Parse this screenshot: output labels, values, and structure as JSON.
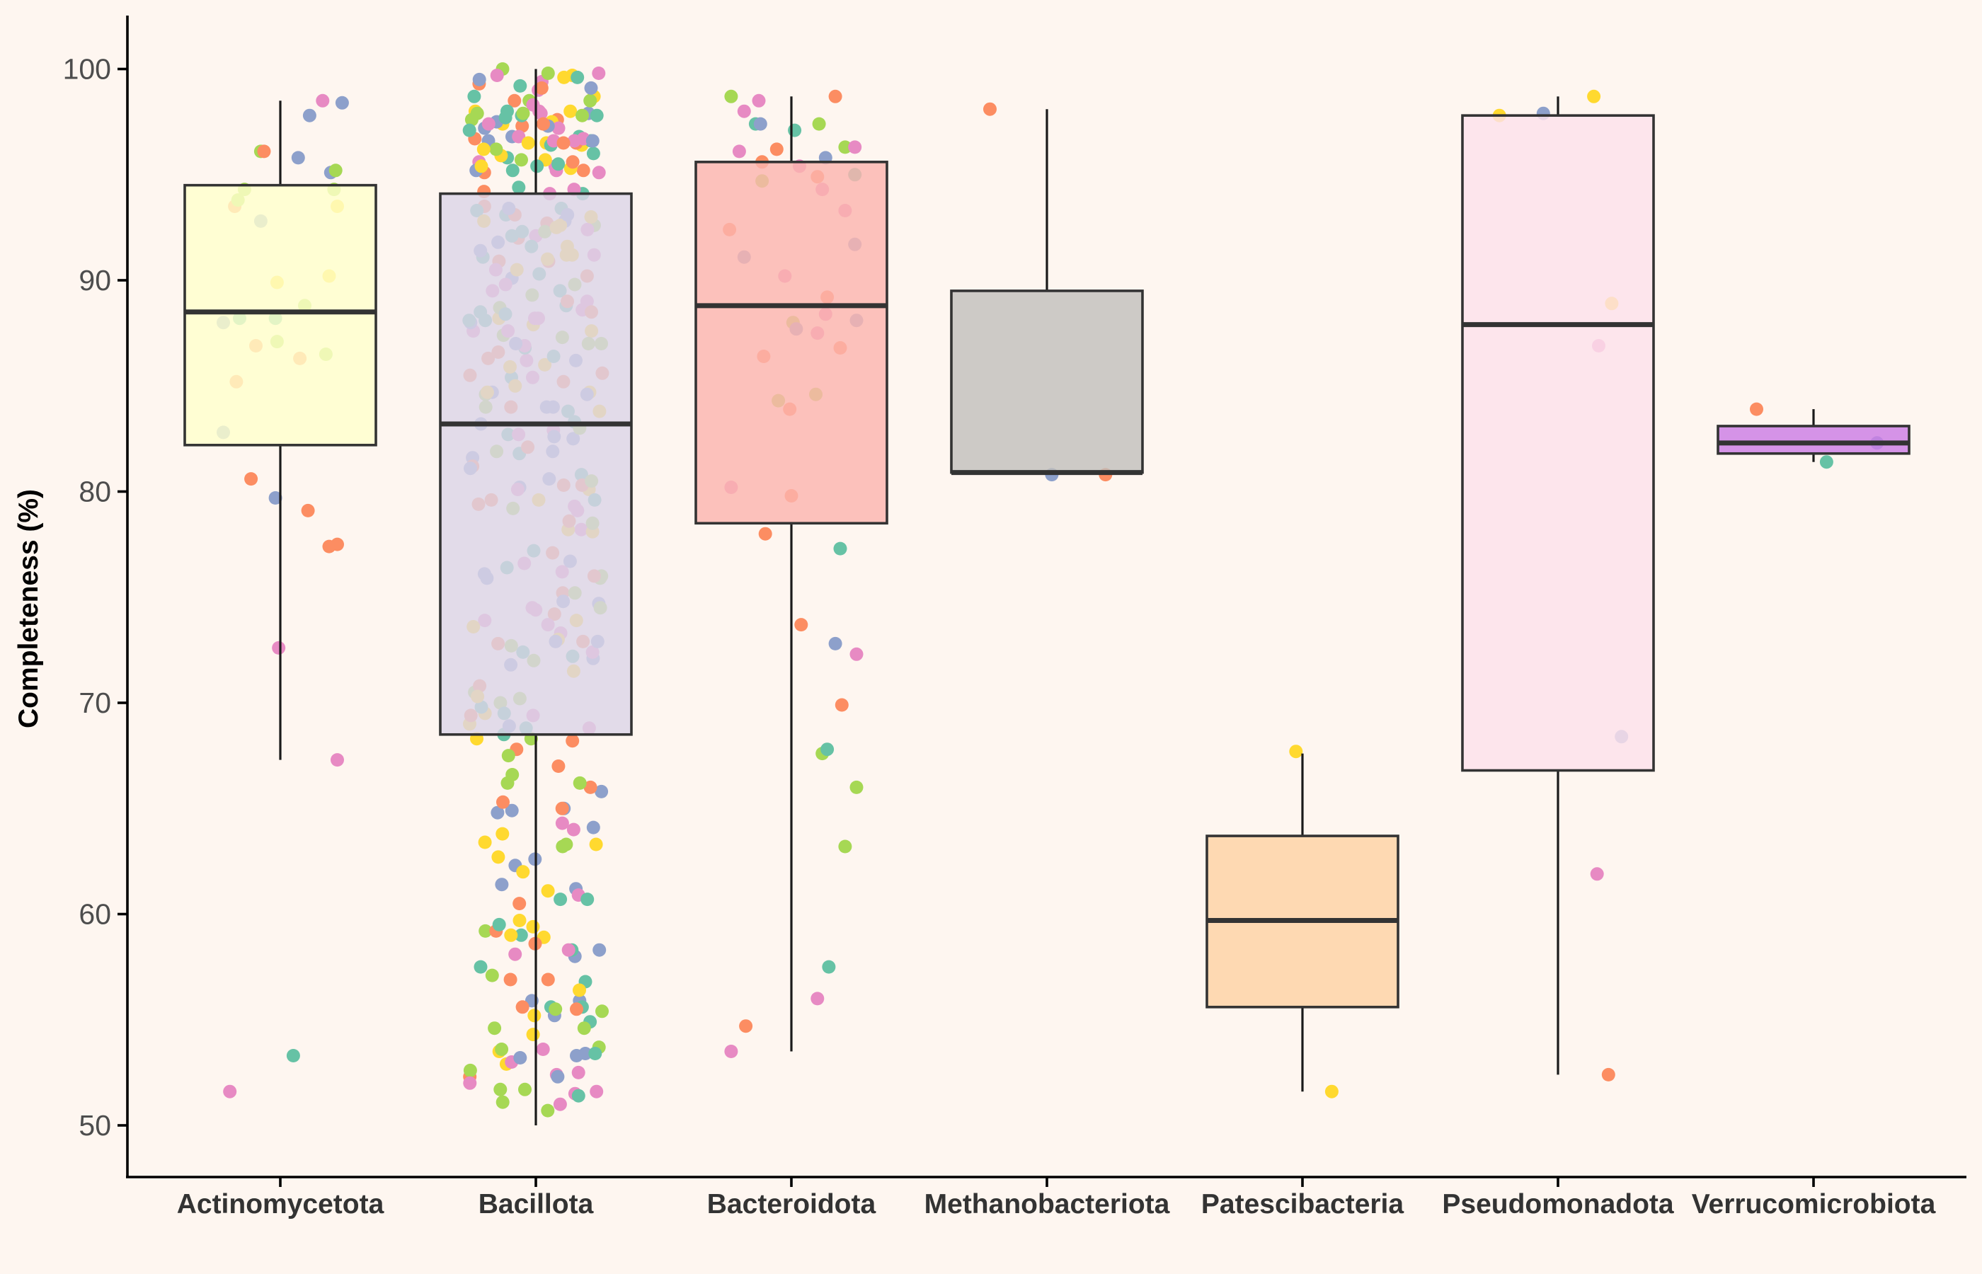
{
  "chart_data": {
    "type": "box",
    "title": "",
    "xlabel": "",
    "ylabel": "Completeness (%)",
    "ylim": [
      47.5,
      102.5
    ],
    "yticks": [
      50,
      60,
      70,
      80,
      90,
      100
    ],
    "grid": false,
    "legend": "none",
    "categories": [
      "Actinomycetota",
      "Bacillota",
      "Bacteroidota",
      "Methanobacteriota",
      "Patescibacteria",
      "Pseudomonadota",
      "Verrucomicrobiota"
    ],
    "point_palette": [
      "#66c2a5",
      "#fc8d62",
      "#8da0cb",
      "#e78ac3",
      "#a6d854",
      "#ffd92f"
    ],
    "boxes": [
      {
        "category": "Actinomycetota",
        "fill": "#ffffcc",
        "q1": 82.2,
        "median": 88.5,
        "q3": 94.5,
        "whisker_low": 67.3,
        "whisker_high": 98.5
      },
      {
        "category": "Bacillota",
        "fill": "#dcd4e6",
        "q1": 68.5,
        "median": 83.2,
        "q3": 94.1,
        "whisker_low": 50.0,
        "whisker_high": 100.0
      },
      {
        "category": "Bacteroidota",
        "fill": "#fbb4ae",
        "q1": 78.5,
        "median": 88.8,
        "q3": 95.6,
        "whisker_low": 53.5,
        "whisker_high": 98.7
      },
      {
        "category": "Methanobacteriota",
        "fill": "#c2bfbc",
        "q1": 80.9,
        "median": 80.9,
        "q3": 89.5,
        "whisker_low": 80.9,
        "whisker_high": 98.1
      },
      {
        "category": "Patescibacteria",
        "fill": "#fed2a4",
        "q1": 55.6,
        "median": 59.7,
        "q3": 63.7,
        "whisker_low": 51.6,
        "whisker_high": 67.6
      },
      {
        "category": "Pseudomonadota",
        "fill": "#fde0ea",
        "q1": 66.8,
        "median": 87.9,
        "q3": 97.8,
        "whisker_low": 52.4,
        "whisker_high": 98.7
      },
      {
        "category": "Verrucomicrobiota",
        "fill": "#cc7de4",
        "q1": 81.8,
        "median": 82.3,
        "q3": 83.1,
        "whisker_low": 81.4,
        "whisker_high": 83.9
      }
    ],
    "points": [
      [
        {
          "dx": -0.35,
          "y": 88.0,
          "c": 2
        },
        {
          "dx": -0.35,
          "y": 82.8,
          "c": 2
        },
        {
          "dx": -0.31,
          "y": 51.6,
          "c": 3
        },
        {
          "dx": -0.28,
          "y": 93.5,
          "c": 1
        },
        {
          "dx": -0.26,
          "y": 93.8,
          "c": 4
        },
        {
          "dx": -0.27,
          "y": 85.2,
          "c": 1
        },
        {
          "dx": -0.25,
          "y": 88.2,
          "c": 0
        },
        {
          "dx": -0.22,
          "y": 94.3,
          "c": 4
        },
        {
          "dx": -0.18,
          "y": 80.6,
          "c": 1
        },
        {
          "dx": -0.15,
          "y": 86.9,
          "c": 1
        },
        {
          "dx": -0.12,
          "y": 92.8,
          "c": 2
        },
        {
          "dx": -0.12,
          "y": 96.1,
          "c": 4
        },
        {
          "dx": -0.1,
          "y": 96.1,
          "c": 1
        },
        {
          "dx": -0.03,
          "y": 79.7,
          "c": 2
        },
        {
          "dx": -0.02,
          "y": 89.9,
          "c": 5
        },
        {
          "dx": -0.03,
          "y": 88.2,
          "c": 0
        },
        {
          "dx": -0.02,
          "y": 87.1,
          "c": 4
        },
        {
          "dx": -0.01,
          "y": 72.6,
          "c": 3
        },
        {
          "dx": 0.08,
          "y": 53.3,
          "c": 0
        },
        {
          "dx": 0.11,
          "y": 95.8,
          "c": 2
        },
        {
          "dx": 0.12,
          "y": 86.3,
          "c": 1
        },
        {
          "dx": 0.15,
          "y": 88.8,
          "c": 4
        },
        {
          "dx": 0.17,
          "y": 79.1,
          "c": 1
        },
        {
          "dx": 0.18,
          "y": 97.8,
          "c": 2
        },
        {
          "dx": 0.26,
          "y": 98.5,
          "c": 3
        },
        {
          "dx": 0.28,
          "y": 86.5,
          "c": 4
        },
        {
          "dx": 0.3,
          "y": 90.2,
          "c": 5
        },
        {
          "dx": 0.3,
          "y": 77.4,
          "c": 1
        },
        {
          "dx": 0.31,
          "y": 95.1,
          "c": 2
        },
        {
          "dx": 0.33,
          "y": 94.3,
          "c": 4
        },
        {
          "dx": 0.34,
          "y": 95.2,
          "c": 4
        },
        {
          "dx": 0.35,
          "y": 93.5,
          "c": 5
        },
        {
          "dx": 0.35,
          "y": 77.5,
          "c": 1
        },
        {
          "dx": 0.35,
          "y": 67.3,
          "c": 3
        },
        {
          "dx": 0.38,
          "y": 98.4,
          "c": 2
        }
      ],
      "generated-dense",
      [
        {
          "dx": -0.38,
          "y": 92.4,
          "c": 1
        },
        {
          "dx": -0.37,
          "y": 80.2,
          "c": 3
        },
        {
          "dx": -0.37,
          "y": 53.5,
          "c": 3
        },
        {
          "dx": -0.37,
          "y": 98.7,
          "c": 4
        },
        {
          "dx": -0.32,
          "y": 96.1,
          "c": 3
        },
        {
          "dx": -0.29,
          "y": 91.1,
          "c": 2
        },
        {
          "dx": -0.29,
          "y": 98.0,
          "c": 3
        },
        {
          "dx": -0.28,
          "y": 54.7,
          "c": 1
        },
        {
          "dx": -0.22,
          "y": 97.4,
          "c": 0
        },
        {
          "dx": -0.2,
          "y": 98.5,
          "c": 3
        },
        {
          "dx": -0.19,
          "y": 97.4,
          "c": 2
        },
        {
          "dx": -0.18,
          "y": 95.6,
          "c": 1
        },
        {
          "dx": -0.18,
          "y": 94.7,
          "c": 4
        },
        {
          "dx": -0.17,
          "y": 86.4,
          "c": 1
        },
        {
          "dx": -0.16,
          "y": 78.0,
          "c": 1
        },
        {
          "dx": -0.09,
          "y": 96.2,
          "c": 1
        },
        {
          "dx": -0.08,
          "y": 84.3,
          "c": 4
        },
        {
          "dx": -0.04,
          "y": 90.2,
          "c": 3
        },
        {
          "dx": -0.01,
          "y": 83.9,
          "c": 1
        },
        {
          "dx": 0.0,
          "y": 79.8,
          "c": 1
        },
        {
          "dx": 0.02,
          "y": 97.1,
          "c": 0
        },
        {
          "dx": 0.01,
          "y": 88.0,
          "c": 4
        },
        {
          "dx": 0.03,
          "y": 87.7,
          "c": 2
        },
        {
          "dx": 0.05,
          "y": 95.4,
          "c": 3
        },
        {
          "dx": 0.06,
          "y": 73.7,
          "c": 1
        },
        {
          "dx": 0.15,
          "y": 84.6,
          "c": 4
        },
        {
          "dx": 0.16,
          "y": 94.9,
          "c": 1
        },
        {
          "dx": 0.16,
          "y": 87.5,
          "c": 3
        },
        {
          "dx": 0.16,
          "y": 56.0,
          "c": 3
        },
        {
          "dx": 0.17,
          "y": 97.4,
          "c": 4
        },
        {
          "dx": 0.19,
          "y": 94.3,
          "c": 3
        },
        {
          "dx": 0.19,
          "y": 67.6,
          "c": 4
        },
        {
          "dx": 0.21,
          "y": 95.8,
          "c": 2
        },
        {
          "dx": 0.21,
          "y": 88.4,
          "c": 3
        },
        {
          "dx": 0.22,
          "y": 89.2,
          "c": 1
        },
        {
          "dx": 0.22,
          "y": 67.8,
          "c": 0
        },
        {
          "dx": 0.23,
          "y": 57.5,
          "c": 0
        },
        {
          "dx": 0.27,
          "y": 98.7,
          "c": 1
        },
        {
          "dx": 0.27,
          "y": 72.8,
          "c": 2
        },
        {
          "dx": 0.3,
          "y": 77.3,
          "c": 0
        },
        {
          "dx": 0.3,
          "y": 86.8,
          "c": 1
        },
        {
          "dx": 0.31,
          "y": 69.9,
          "c": 1
        },
        {
          "dx": 0.33,
          "y": 93.3,
          "c": 3
        },
        {
          "dx": 0.33,
          "y": 63.2,
          "c": 4
        },
        {
          "dx": 0.33,
          "y": 96.3,
          "c": 4
        },
        {
          "dx": 0.39,
          "y": 96.3,
          "c": 3
        },
        {
          "dx": 0.39,
          "y": 95.0,
          "c": 0
        },
        {
          "dx": 0.39,
          "y": 91.7,
          "c": 2
        },
        {
          "dx": 0.4,
          "y": 88.1,
          "c": 2
        },
        {
          "dx": 0.4,
          "y": 72.3,
          "c": 3
        },
        {
          "dx": 0.4,
          "y": 66.0,
          "c": 4
        }
      ],
      [
        {
          "dx": -0.35,
          "y": 98.1,
          "c": 1
        },
        {
          "dx": 0.03,
          "y": 80.8,
          "c": 2
        },
        {
          "dx": 0.36,
          "y": 80.8,
          "c": 1
        }
      ],
      [
        {
          "dx": -0.04,
          "y": 67.7,
          "c": 5
        },
        {
          "dx": 0.18,
          "y": 51.6,
          "c": 5
        }
      ],
      [
        {
          "dx": -0.36,
          "y": 97.8,
          "c": 5
        },
        {
          "dx": -0.09,
          "y": 97.9,
          "c": 2
        },
        {
          "dx": 0.22,
          "y": 98.7,
          "c": 5
        },
        {
          "dx": 0.24,
          "y": 61.9,
          "c": 3
        },
        {
          "dx": 0.25,
          "y": 86.9,
          "c": 3
        },
        {
          "dx": 0.31,
          "y": 52.4,
          "c": 1
        },
        {
          "dx": 0.33,
          "y": 88.9,
          "c": 5
        },
        {
          "dx": 0.39,
          "y": 68.4,
          "c": 2
        }
      ],
      [
        {
          "dx": -0.35,
          "y": 83.9,
          "c": 1
        },
        {
          "dx": 0.08,
          "y": 81.4,
          "c": 0
        },
        {
          "dx": 0.39,
          "y": 82.3,
          "c": 2
        }
      ]
    ]
  }
}
